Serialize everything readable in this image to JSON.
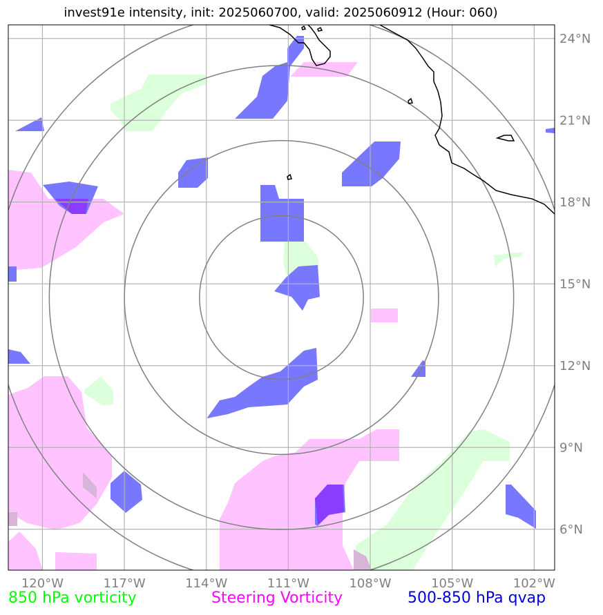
{
  "title": "invest91e intensity, init: 2025060700, valid: 2025060912 (Hour: 060)",
  "map": {
    "lon_min": -121.25,
    "lon_max": -101.25,
    "lat_min": 4.5,
    "lat_max": 24.5,
    "center": {
      "lon": -111.25,
      "lat": 14.5
    },
    "range_ring_degrees": [
      3,
      5.75,
      8.5,
      10.5
    ],
    "lat_ticks": [
      {
        "value": 24,
        "label": "24°N"
      },
      {
        "value": 21,
        "label": "21°N"
      },
      {
        "value": 18,
        "label": "18°N"
      },
      {
        "value": 15,
        "label": "15°N"
      },
      {
        "value": 12,
        "label": "12°N"
      },
      {
        "value": 9,
        "label": "9°N"
      },
      {
        "value": 6,
        "label": "6°N"
      }
    ],
    "lon_ticks": [
      {
        "value": -120,
        "label": "120°W"
      },
      {
        "value": -117,
        "label": "117°W"
      },
      {
        "value": -114,
        "label": "114°W"
      },
      {
        "value": -111,
        "label": "111°W"
      },
      {
        "value": -108,
        "label": "108°W"
      },
      {
        "value": -105,
        "label": "105°W"
      },
      {
        "value": -102,
        "label": "102°W"
      }
    ],
    "colors": {
      "vort850": "#dcffdc",
      "steering": "#ffc3ff",
      "qvap": "#7878ff",
      "overlap": "#8a3cff",
      "grid": "#b4b4b4",
      "ring": "#808080",
      "coast": "#000000"
    }
  },
  "legend": {
    "vort850": {
      "label": "850 hPa vorticity",
      "color": "#00ff00"
    },
    "steering": {
      "label": "Steering Vorticity",
      "color": "#ff00ff"
    },
    "qvap": {
      "label": "500-850 hPa qvap",
      "color": "#0000dd"
    }
  }
}
